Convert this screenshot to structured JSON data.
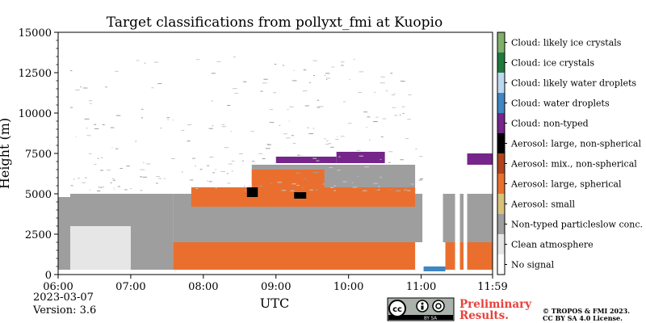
{
  "chart_data": {
    "type": "heatmap",
    "title": "Target classifications from pollyxt_fmi at Kuopio",
    "xlabel": "UTC",
    "ylabel": "Height (m)",
    "x_ticks": [
      "06:00",
      "07:00",
      "08:00",
      "09:00",
      "10:00",
      "11:00",
      "11:59"
    ],
    "y_ticks": [
      "0",
      "2500",
      "5000",
      "7500",
      "10000",
      "12500",
      "15000"
    ],
    "x_range": [
      "06:00",
      "11:59"
    ],
    "ylim": [
      0,
      15000
    ],
    "grid": false,
    "legend_position": "right (colorbar)",
    "classes": [
      {
        "value": 0,
        "label": "No signal",
        "color": "#ffffff"
      },
      {
        "value": 1,
        "label": "Clean atmosphere",
        "color": "#e6e6e6"
      },
      {
        "value": 2,
        "label": "Non-typed particleslow conc.",
        "color": "#9e9e9e"
      },
      {
        "value": 3,
        "label": "Aerosol: small",
        "color": "#d9c17a"
      },
      {
        "value": 4,
        "label": "Aerosol: large, spherical",
        "color": "#ea6f2e"
      },
      {
        "value": 5,
        "label": "Aerosol: mix., non-spherical",
        "color": "#b0441d"
      },
      {
        "value": 6,
        "label": "Aerosol: large, non-spherical",
        "color": "#000000"
      },
      {
        "value": 7,
        "label": "Cloud: non-typed",
        "color": "#76258a"
      },
      {
        "value": 8,
        "label": "Cloud: water droplets",
        "color": "#3f86c4"
      },
      {
        "value": 9,
        "label": "Cloud: likely water droplets",
        "color": "#bcd8f1"
      },
      {
        "value": 10,
        "label": "Cloud: ice crystals",
        "color": "#1f7a3c"
      },
      {
        "value": 11,
        "label": "Cloud: likely ice crystals",
        "color": "#7fb06a"
      }
    ],
    "regions": [
      {
        "class": 1,
        "t0": "06:00",
        "t1": "07:00",
        "h0": 300,
        "h1": 3000
      },
      {
        "class": 2,
        "t0": "06:00",
        "t1": "06:10",
        "h0": 300,
        "h1": 4800
      },
      {
        "class": 2,
        "t0": "06:10",
        "t1": "07:35",
        "h0": 3000,
        "h1": 5000
      },
      {
        "class": 2,
        "t0": "07:00",
        "t1": "07:35",
        "h0": 300,
        "h1": 3000
      },
      {
        "class": 2,
        "t0": "07:35",
        "t1": "11:59",
        "h0": 2000,
        "h1": 5000
      },
      {
        "class": 2,
        "t0": "08:40",
        "t1": "10:55",
        "h0": 5000,
        "h1": 6800
      },
      {
        "class": 4,
        "t0": "07:35",
        "t1": "10:55",
        "h0": 300,
        "h1": 2000
      },
      {
        "class": 4,
        "t0": "11:20",
        "t1": "11:59",
        "h0": 300,
        "h1": 2000
      },
      {
        "class": 4,
        "t0": "07:50",
        "t1": "10:55",
        "h0": 4200,
        "h1": 5400
      },
      {
        "class": 4,
        "t0": "08:40",
        "t1": "09:40",
        "h0": 5400,
        "h1": 6500
      },
      {
        "class": 7,
        "t0": "09:00",
        "t1": "09:50",
        "h0": 6900,
        "h1": 7300
      },
      {
        "class": 7,
        "t0": "09:50",
        "t1": "10:30",
        "h0": 6900,
        "h1": 7600
      },
      {
        "class": 7,
        "t0": "11:35",
        "t1": "11:59",
        "h0": 6800,
        "h1": 7500
      },
      {
        "class": 6,
        "t0": "08:36",
        "t1": "08:45",
        "h0": 4800,
        "h1": 5400
      },
      {
        "class": 6,
        "t0": "09:15",
        "t1": "09:25",
        "h0": 4700,
        "h1": 5100
      },
      {
        "class": 0,
        "t0": "11:01",
        "t1": "11:18",
        "h0": 300,
        "h1": 15000
      },
      {
        "class": 0,
        "t0": "11:28",
        "t1": "11:32",
        "h0": 300,
        "h1": 15000
      },
      {
        "class": 0,
        "t0": "11:35",
        "t1": "11:38",
        "h0": 300,
        "h1": 15000
      },
      {
        "class": 8,
        "t0": "11:02",
        "t1": "11:20",
        "h0": 200,
        "h1": 500
      }
    ]
  },
  "footer": {
    "date": "2023-03-07",
    "version": "Version: 3.6",
    "preliminary_line1": "Preliminary",
    "preliminary_line2": "Results.",
    "copyright_line1": "© TROPOS & FMI 2023.",
    "copyright_line2": "CC BY SA 4.0 License.",
    "cc_badge_text": "BY   SA"
  }
}
